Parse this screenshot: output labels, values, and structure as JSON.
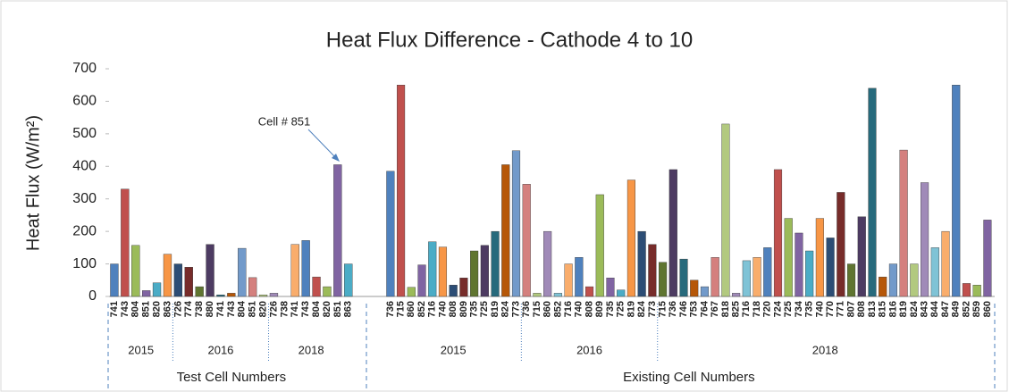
{
  "chart_data": {
    "type": "bar",
    "title": "Heat Flux Difference - Cathode 4 to 10",
    "y_label": "Heat Flux (W/m²)",
    "annotation": "Cell # 851",
    "ylim": [
      0,
      700
    ],
    "yticks": [
      0,
      100,
      200,
      300,
      400,
      500,
      600,
      700
    ],
    "colors": [
      "#4f81bd",
      "#c0504d",
      "#9bbb59",
      "#8064a2",
      "#4bacc6",
      "#f79646",
      "#2c4d75",
      "#772c2a",
      "#5f7530",
      "#4d3b62",
      "#276a7c",
      "#b65708",
      "#729aca",
      "#d4807e",
      "#b2c97f",
      "#a08ab8",
      "#7fc3d6",
      "#f9ad6c"
    ],
    "groups": [
      {
        "name": "Test Cell Numbers",
        "years": [
          {
            "name": "2015",
            "categories": [
              "741",
              "743",
              "804",
              "851",
              "820",
              "863"
            ],
            "values": [
              100,
              330,
              157,
              18,
              42,
              130
            ]
          },
          {
            "name": "2016",
            "categories": [
              "726",
              "774",
              "738",
              "880",
              "741",
              "743",
              "804",
              "851",
              "820"
            ],
            "values": [
              100,
              90,
              30,
              160,
              5,
              10,
              148,
              58,
              5
            ]
          },
          {
            "name": "2018",
            "categories": [
              "726",
              "738",
              "741",
              "743",
              "804",
              "820",
              "851",
              "863"
            ],
            "values": [
              10,
              0,
              160,
              172,
              60,
              30,
              405,
              100
            ]
          }
        ]
      },
      {
        "name": "Existing Cell Numbers",
        "years": [
          {
            "name": "2015",
            "categories": [
              "736",
              "715",
              "860",
              "852",
              "716",
              "740",
              "808",
              "809",
              "735",
              "725",
              "819",
              "824",
              "773"
            ],
            "values": [
              385,
              650,
              28,
              97,
              168,
              152,
              35,
              57,
              140,
              157,
              200,
              405,
              448
            ]
          },
          {
            "name": "2016",
            "categories": [
              "736",
              "715",
              "860",
              "852",
              "716",
              "740",
              "808",
              "809",
              "735",
              "725",
              "819",
              "824",
              "773"
            ],
            "values": [
              345,
              10,
              200,
              10,
              100,
              120,
              30,
              313,
              57,
              20,
              358,
              200,
              160
            ]
          },
          {
            "name": "2018",
            "categories": [
              "715",
              "736",
              "746",
              "753",
              "764",
              "767",
              "818",
              "825",
              "716",
              "718",
              "720",
              "724",
              "725",
              "734",
              "735",
              "740",
              "770",
              "771",
              "807",
              "808",
              "813",
              "815",
              "816",
              "819",
              "824",
              "843",
              "844",
              "847",
              "849",
              "852",
              "859",
              "860"
            ],
            "values": [
              105,
              390,
              115,
              50,
              30,
              120,
              530,
              10,
              110,
              120,
              150,
              390,
              240,
              195,
              140,
              240,
              180,
              320,
              100,
              245,
              640,
              60,
              100,
              450,
              100,
              350,
              150,
              200,
              650,
              40,
              35,
              235
            ]
          }
        ]
      }
    ]
  }
}
